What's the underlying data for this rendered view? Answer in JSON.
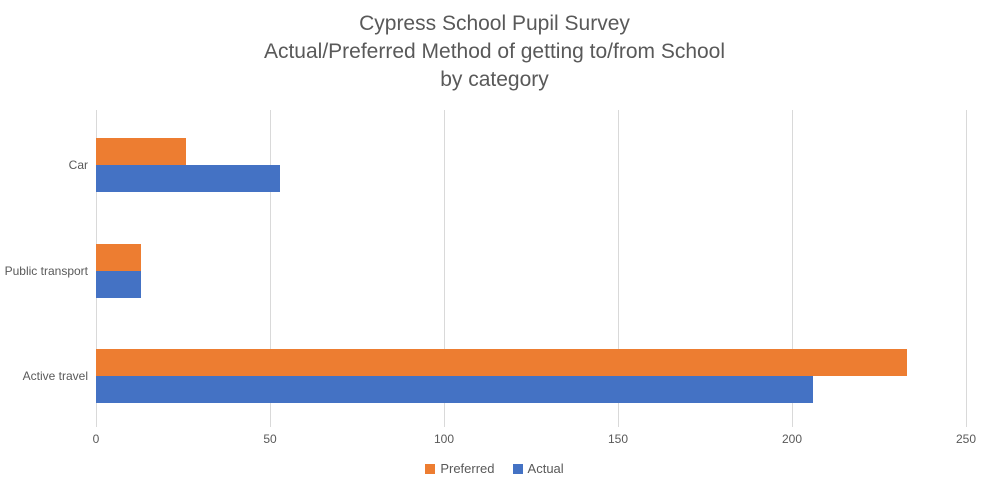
{
  "chart_data": {
    "type": "bar",
    "orientation": "horizontal",
    "title_lines": [
      "Cypress School Pupil Survey",
      "Actual/Preferred Method of getting to/from School",
      "by category"
    ],
    "title": "Cypress School Pupil Survey\nActual/Preferred Method of getting to/from School\nby category",
    "categories": [
      "Car",
      "Public transport",
      "Active travel"
    ],
    "series": [
      {
        "name": "Preferred",
        "color": "#ED7D31",
        "values": [
          26,
          13,
          233
        ]
      },
      {
        "name": "Actual",
        "color": "#4472C4",
        "values": [
          53,
          13,
          206
        ]
      }
    ],
    "xlabel": "",
    "ylabel": "",
    "x_axis": {
      "min": 0,
      "max": 250,
      "tick_interval": 50,
      "ticks": [
        0,
        50,
        100,
        150,
        200,
        250
      ]
    },
    "grid": true,
    "legend_position": "bottom",
    "colors": {
      "title_text": "#595959",
      "axis_text": "#595959",
      "gridline": "#D9D9D9",
      "background": "#FFFFFF"
    }
  }
}
